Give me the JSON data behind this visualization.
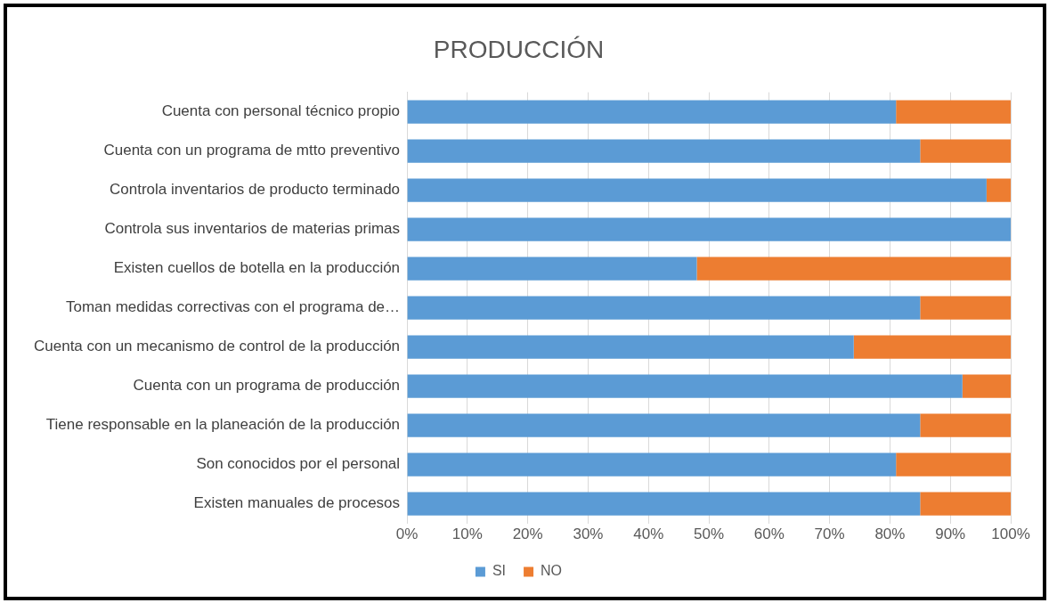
{
  "chart_data": {
    "type": "bar",
    "title": "PRODUCCIÓN",
    "orientation": "horizontal",
    "stacked": true,
    "categories": [
      "Cuenta con personal técnico propio",
      "Cuenta con un programa de mtto preventivo",
      "Controla inventarios de producto terminado",
      "Controla sus inventarios de materias primas",
      "Existen cuellos de botella en la producción",
      "Toman medidas correctivas con el programa de…",
      "Cuenta con un mecanismo de control de la producción",
      "Cuenta con un programa de producción",
      "Tiene responsable en la planeación de la producción",
      "Son conocidos por el personal",
      "Existen manuales de procesos"
    ],
    "series": [
      {
        "name": "SI",
        "color": "#5b9bd5",
        "values": [
          81,
          85,
          96,
          100,
          48,
          85,
          74,
          92,
          85,
          81,
          85
        ]
      },
      {
        "name": "NO",
        "color": "#ed7d31",
        "values": [
          19,
          15,
          4,
          0,
          52,
          15,
          26,
          8,
          15,
          19,
          15
        ]
      }
    ],
    "xlim": [
      0,
      100
    ],
    "xticks": [
      {
        "value": 0,
        "label": "0%"
      },
      {
        "value": 10,
        "label": "10%"
      },
      {
        "value": 20,
        "label": "20%"
      },
      {
        "value": 30,
        "label": "30%"
      },
      {
        "value": 40,
        "label": "40%"
      },
      {
        "value": 50,
        "label": "50%"
      },
      {
        "value": 60,
        "label": "60%"
      },
      {
        "value": 70,
        "label": "70%"
      },
      {
        "value": 80,
        "label": "80%"
      },
      {
        "value": 90,
        "label": "90%"
      },
      {
        "value": 100,
        "label": "100%"
      }
    ],
    "grid": "x",
    "legend": "bottom"
  }
}
